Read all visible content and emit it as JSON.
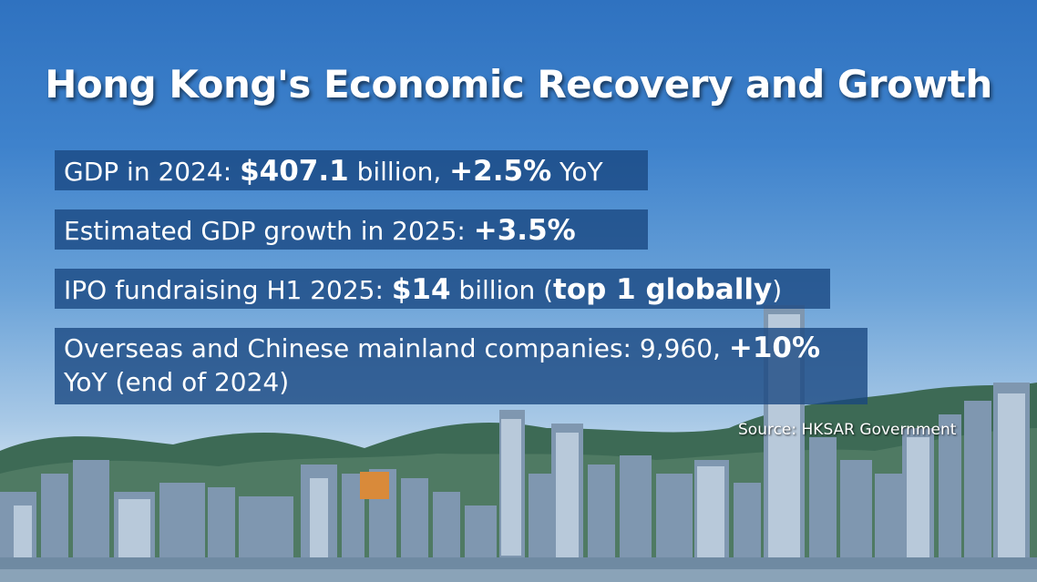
{
  "title": "Hong Kong's Economic Recovery and Growth",
  "stats": [
    {
      "lead": "GDP in 2024: ",
      "value": "$407.1",
      "mid": " billion, ",
      "change": "+2.5%",
      "tail": " YoY"
    },
    {
      "lead": "Estimated GDP growth in 2025: ",
      "value": "+3.5%"
    },
    {
      "lead": "IPO fundraising H1 2025: ",
      "value": "$14",
      "mid": " billion (",
      "rank": "top 1 globally",
      "tail": ")"
    },
    {
      "lead": "Overseas and Chinese mainland companies: 9,960, ",
      "change": "+10%",
      "tail": "YoY (end of 2024)"
    }
  ],
  "source": "Source: HKSAR Government",
  "colors": {
    "box": "#184680",
    "text": "#ffffff",
    "sky_top": "#2f72c0"
  }
}
